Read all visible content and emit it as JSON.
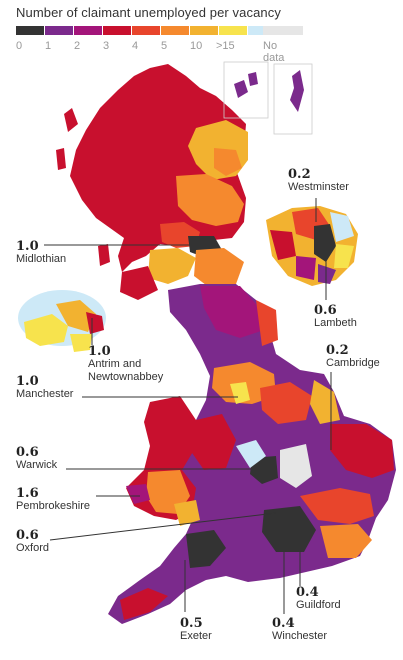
{
  "title": "Number of claimant unemployed per vacancy",
  "legend": {
    "ticks": [
      "0",
      "1",
      "2",
      "3",
      "4",
      "5",
      "10",
      ">15"
    ],
    "no_data_label": "No data",
    "colors": [
      "#333333",
      "#7b2a8c",
      "#a3157a",
      "#c8102e",
      "#e8452c",
      "#f5892e",
      "#f2b230",
      "#f7e34d",
      "#cde9f7",
      "#e6e6e6"
    ]
  },
  "callouts": {
    "westminster": {
      "value": "0.2",
      "name": "Westminster"
    },
    "midlothian": {
      "value": "1.0",
      "name": "Midlothian"
    },
    "lambeth": {
      "value": "0.6",
      "name": "Lambeth"
    },
    "antrim": {
      "value": "1.0",
      "name": "Antrim and Newtownabbey"
    },
    "cambridge": {
      "value": "0.2",
      "name": "Cambridge"
    },
    "manchester": {
      "value": "1.0",
      "name": "Manchester"
    },
    "warwick": {
      "value": "0.6",
      "name": "Warwick"
    },
    "pembrokeshire": {
      "value": "1.6",
      "name": "Pembrokeshire"
    },
    "oxford": {
      "value": "0.6",
      "name": "Oxford"
    },
    "guildford": {
      "value": "0.4",
      "name": "Guildford"
    },
    "exeter": {
      "value": "0.5",
      "name": "Exeter"
    },
    "winchester": {
      "value": "0.4",
      "name": "Winchester"
    }
  }
}
